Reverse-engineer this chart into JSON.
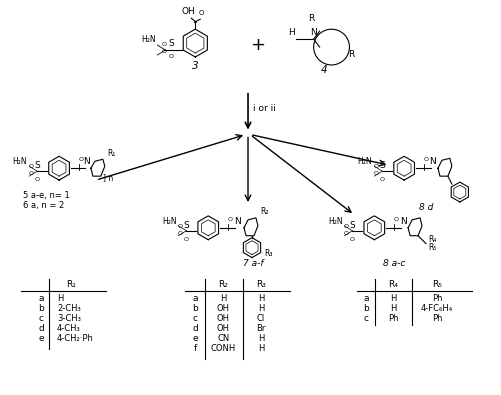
{
  "title": "",
  "background_color": "#ffffff",
  "figsize": [
    5.01,
    3.95
  ],
  "dpi": 100,
  "table1": {
    "header": [
      "",
      "R₁"
    ],
    "rows": [
      [
        "a",
        "H"
      ],
      [
        "b",
        "2-CH₃"
      ],
      [
        "c",
        "3-CH₃"
      ],
      [
        "d",
        "4-CH₃"
      ],
      [
        "e",
        "4-CH₂·Ph"
      ]
    ]
  },
  "table2": {
    "header": [
      "",
      "R₂",
      "R₃"
    ],
    "rows": [
      [
        "a",
        "H",
        "H"
      ],
      [
        "b",
        "OH",
        "H"
      ],
      [
        "c",
        "OH",
        "Cl"
      ],
      [
        "d",
        "OH",
        "Br"
      ],
      [
        "e",
        "CN",
        "H"
      ],
      [
        "f",
        "CONH",
        "H"
      ]
    ]
  },
  "table3": {
    "header": [
      "",
      "R₄",
      "R₅"
    ],
    "rows": [
      [
        "a",
        "H",
        "Ph"
      ],
      [
        "b",
        "H",
        "4-FC₆H₄"
      ],
      [
        "c",
        "Ph",
        "Ph"
      ]
    ]
  }
}
